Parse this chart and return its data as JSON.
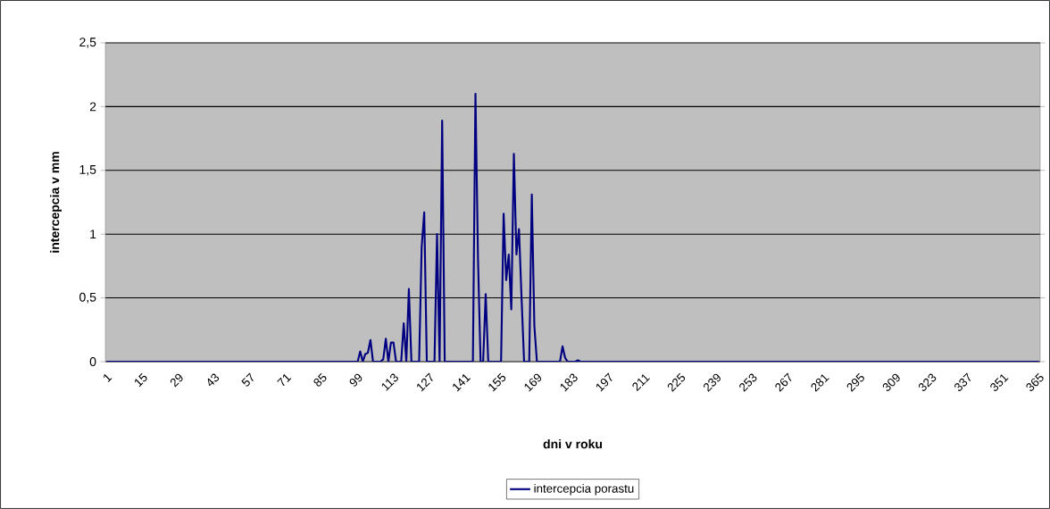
{
  "chart_data": {
    "type": "line",
    "xlabel": "dni v roku",
    "ylabel": "intercepcia v mm",
    "xlim": [
      0.5,
      365.5
    ],
    "xticks": [
      1,
      15,
      29,
      43,
      57,
      71,
      85,
      99,
      113,
      127,
      141,
      155,
      169,
      183,
      197,
      211,
      225,
      239,
      253,
      267,
      281,
      295,
      309,
      323,
      337,
      351,
      365
    ],
    "ylim": [
      0,
      2.5
    ],
    "yticks": [
      0,
      {
        "value": 0.5,
        "label": "0,5"
      },
      1,
      {
        "value": 1.5,
        "label": "1,5"
      },
      2,
      {
        "value": 2.5,
        "label": "2,5"
      }
    ],
    "grid": "y",
    "legend": "bottom",
    "marker": "none",
    "line_style": "solid",
    "series": [
      {
        "name": "intercepcia porastu",
        "color": "#000080",
        "x": [
          1,
          99,
          100,
          101,
          102,
          103,
          104,
          105,
          108,
          109,
          110,
          111,
          112,
          113,
          114,
          116,
          117,
          118,
          119,
          120,
          123,
          124,
          125,
          126,
          129,
          130,
          131,
          132,
          133,
          144,
          145,
          146,
          147,
          148,
          149,
          150,
          155,
          156,
          157,
          158,
          159,
          160,
          161,
          162,
          163,
          164,
          166,
          167,
          168,
          169,
          178,
          179,
          180,
          181,
          184,
          185,
          186,
          365
        ],
        "values": [
          0,
          0,
          0.08,
          0,
          0.06,
          0.07,
          0.17,
          0,
          0,
          0.02,
          0.18,
          0,
          0.15,
          0.15,
          0,
          0,
          0.3,
          0,
          0.57,
          0,
          0,
          0.9,
          1.17,
          0,
          0,
          1.0,
          0,
          1.89,
          0,
          0,
          2.1,
          0.8,
          0,
          0,
          0.53,
          0,
          0,
          1.16,
          0.64,
          0.84,
          0.41,
          1.63,
          0.84,
          1.04,
          0.5,
          0,
          0,
          1.31,
          0.28,
          0,
          0,
          0.12,
          0.03,
          0,
          0,
          0.01,
          0,
          0
        ]
      }
    ]
  }
}
